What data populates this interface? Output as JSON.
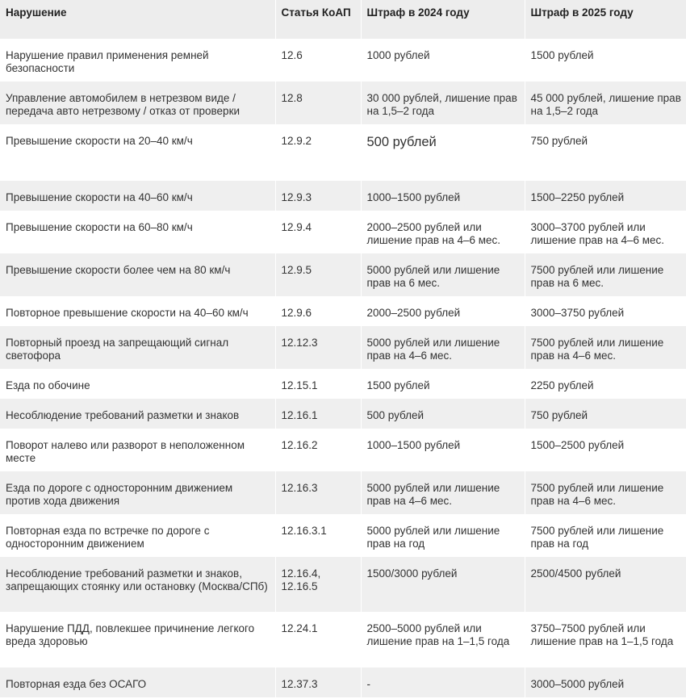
{
  "table": {
    "headers": [
      "Нарушение",
      "Статья КоАП",
      "Штраф в 2024 году",
      "Штраф в 2025 году"
    ],
    "rows": [
      {
        "violation": "Нарушение правил применения ремней безопасности",
        "article": "12.6",
        "fine_2024": "1000 рублей",
        "fine_2025": "1500 рублей"
      },
      {
        "violation": "Управление автомобилем в нетрезвом виде / передача авто нетрезвому / отказ от проверки",
        "article": "12.8",
        "fine_2024": "30 000 рублей, лишение прав на 1,5–2 года",
        "fine_2025": "45 000 рублей, лишение прав на 1,5–2 года"
      },
      {
        "violation": "Превышение скорости на 20–40 км/ч",
        "article": "12.9.2",
        "fine_2024": "500 рублей",
        "fine_2025": "750 рублей"
      },
      {
        "violation": "Превышение скорости на 40–60 км/ч",
        "article": "12.9.3",
        "fine_2024": "1000–1500 рублей",
        "fine_2025": "1500–2250 рублей"
      },
      {
        "violation": "Превышение скорости на 60–80 км/ч",
        "article": "12.9.4",
        "fine_2024": "2000–2500 рублей или лишение прав на 4–6 мес.",
        "fine_2025": "3000–3700 рублей или лишение прав на 4–6 мес."
      },
      {
        "violation": "Превышение скорости более чем на 80 км/ч",
        "article": "12.9.5",
        "fine_2024": "5000 рублей или лишение прав на 6 мес.",
        "fine_2025": "7500 рублей или лишение прав на 6 мес."
      },
      {
        "violation": "Повторное превышение скорости на 40–60 км/ч",
        "article": "12.9.6",
        "fine_2024": "2000–2500 рублей",
        "fine_2025": "3000–3750 рублей"
      },
      {
        "violation": "Повторный проезд на запрещающий сигнал светофора",
        "article": "12.12.3",
        "fine_2024": "5000 рублей или лишение прав на 4–6 мес.",
        "fine_2025": "7500 рублей или лишение прав на 4–6 мес."
      },
      {
        "violation": "Езда по обочине",
        "article": "12.15.1",
        "fine_2024": "1500 рублей",
        "fine_2025": "2250 рублей"
      },
      {
        "violation": "Несоблюдение требований разметки и знаков",
        "article": "12.16.1",
        "fine_2024": "500 рублей",
        "fine_2025": "750 рублей"
      },
      {
        "violation": "Поворот налево или разворот в неположенном месте",
        "article": "12.16.2",
        "fine_2024": "1000–1500 рублей",
        "fine_2025": "1500–2500 рублей"
      },
      {
        "violation": "Езда по дороге с односторонним движением против хода движения",
        "article": "12.16.3",
        "fine_2024": "5000 рублей или лишение прав на 4–6 мес.",
        "fine_2025": "7500 рублей или лишение прав на 4–6 мес."
      },
      {
        "violation": "Повторная езда по встречке по дороге с односторонним движением",
        "article": "12.16.3.1",
        "fine_2024": "5000 рублей или лишение прав на год",
        "fine_2025": "7500 рублей или лишение прав на год"
      },
      {
        "violation": "Несоблюдение требований разметки и знаков, запрещающих стоянку или остановку (Москва/СПб)",
        "article": "12.16.4, 12.16.5",
        "fine_2024": "1500/3000 рублей",
        "fine_2025": "2500/4500 рублей"
      },
      {
        "violation": "Нарушение ПДД, повлекшее причинение легкого вреда здоровью",
        "article": "12.24.1",
        "fine_2024": "2500–5000 рублей или лишение прав на 1–1,5 года",
        "fine_2025": "3750–7500 рублей или лишение прав на 1–1,5 года"
      },
      {
        "violation": "Повторная езда без ОСАГО",
        "article": "12.37.3",
        "fine_2024": "-",
        "fine_2025": "3000–5000 рублей"
      }
    ]
  }
}
